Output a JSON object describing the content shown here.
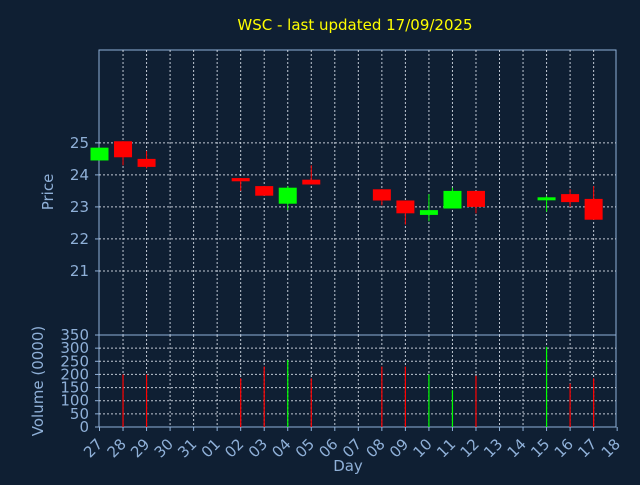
{
  "chart_data": {
    "type": "candlestick",
    "title": "WSC - last updated 17/09/2025",
    "xlabel": "Day",
    "x_ticks": [
      "27",
      "28",
      "29",
      "30",
      "31",
      "01",
      "02",
      "03",
      "04",
      "05",
      "06",
      "07",
      "08",
      "09",
      "10",
      "11",
      "12",
      "13",
      "14",
      "15",
      "16",
      "17",
      "18"
    ],
    "grid": true,
    "colors": {
      "background": "#0f1f33",
      "title": "#ffff00",
      "axis_text": "#8fb0d8",
      "up": "#00ff00",
      "down": "#ff0000",
      "grid": "#dfe6f0"
    },
    "price": {
      "ylabel": "Price",
      "ylim": [
        19.0,
        27.9
      ],
      "y_ticks": [
        21,
        22,
        23,
        24,
        25
      ],
      "candles": [
        {
          "day": "27",
          "open": 24.45,
          "high": 24.85,
          "low": 24.45,
          "close": 24.85
        },
        {
          "day": "28",
          "open": 25.05,
          "high": 25.05,
          "low": 24.3,
          "close": 24.55
        },
        {
          "day": "29",
          "open": 24.5,
          "high": 24.75,
          "low": 24.2,
          "close": 24.25
        },
        {
          "day": "02",
          "open": 23.9,
          "high": 23.9,
          "low": 23.5,
          "close": 23.8
        },
        {
          "day": "03",
          "open": 23.65,
          "high": 23.65,
          "low": 23.35,
          "close": 23.35
        },
        {
          "day": "04",
          "open": 23.1,
          "high": 23.65,
          "low": 22.9,
          "close": 23.6
        },
        {
          "day": "05",
          "open": 23.85,
          "high": 24.3,
          "low": 23.7,
          "close": 23.7
        },
        {
          "day": "08",
          "open": 23.55,
          "high": 23.55,
          "low": 23.05,
          "close": 23.2
        },
        {
          "day": "09",
          "open": 23.2,
          "high": 23.2,
          "low": 22.45,
          "close": 22.8
        },
        {
          "day": "10",
          "open": 22.75,
          "high": 23.4,
          "low": 22.55,
          "close": 22.9
        },
        {
          "day": "11",
          "open": 22.95,
          "high": 23.6,
          "low": 22.95,
          "close": 23.5
        },
        {
          "day": "12",
          "open": 23.5,
          "high": 23.5,
          "low": 22.8,
          "close": 23.0
        },
        {
          "day": "15",
          "open": 23.25,
          "high": 23.35,
          "low": 22.85,
          "close": 23.3
        },
        {
          "day": "16",
          "open": 23.4,
          "high": 23.55,
          "low": 23.0,
          "close": 23.15
        },
        {
          "day": "17",
          "open": 23.25,
          "high": 23.65,
          "low": 22.6,
          "close": 22.6
        }
      ]
    },
    "volume": {
      "ylabel": "Volume (0000)",
      "ylim": [
        0,
        350
      ],
      "y_ticks": [
        0,
        50,
        100,
        150,
        200,
        250,
        300,
        350
      ],
      "bars": [
        {
          "day": "28",
          "value": 200,
          "direction": "down"
        },
        {
          "day": "29",
          "value": 200,
          "direction": "down"
        },
        {
          "day": "02",
          "value": 185,
          "direction": "down"
        },
        {
          "day": "03",
          "value": 230,
          "direction": "down"
        },
        {
          "day": "04",
          "value": 255,
          "direction": "up"
        },
        {
          "day": "05",
          "value": 185,
          "direction": "down"
        },
        {
          "day": "08",
          "value": 230,
          "direction": "down"
        },
        {
          "day": "09",
          "value": 230,
          "direction": "down"
        },
        {
          "day": "10",
          "value": 200,
          "direction": "up"
        },
        {
          "day": "11",
          "value": 140,
          "direction": "up"
        },
        {
          "day": "12",
          "value": 195,
          "direction": "down"
        },
        {
          "day": "15",
          "value": 305,
          "direction": "up"
        },
        {
          "day": "16",
          "value": 165,
          "direction": "down"
        },
        {
          "day": "17",
          "value": 185,
          "direction": "down"
        }
      ]
    }
  }
}
